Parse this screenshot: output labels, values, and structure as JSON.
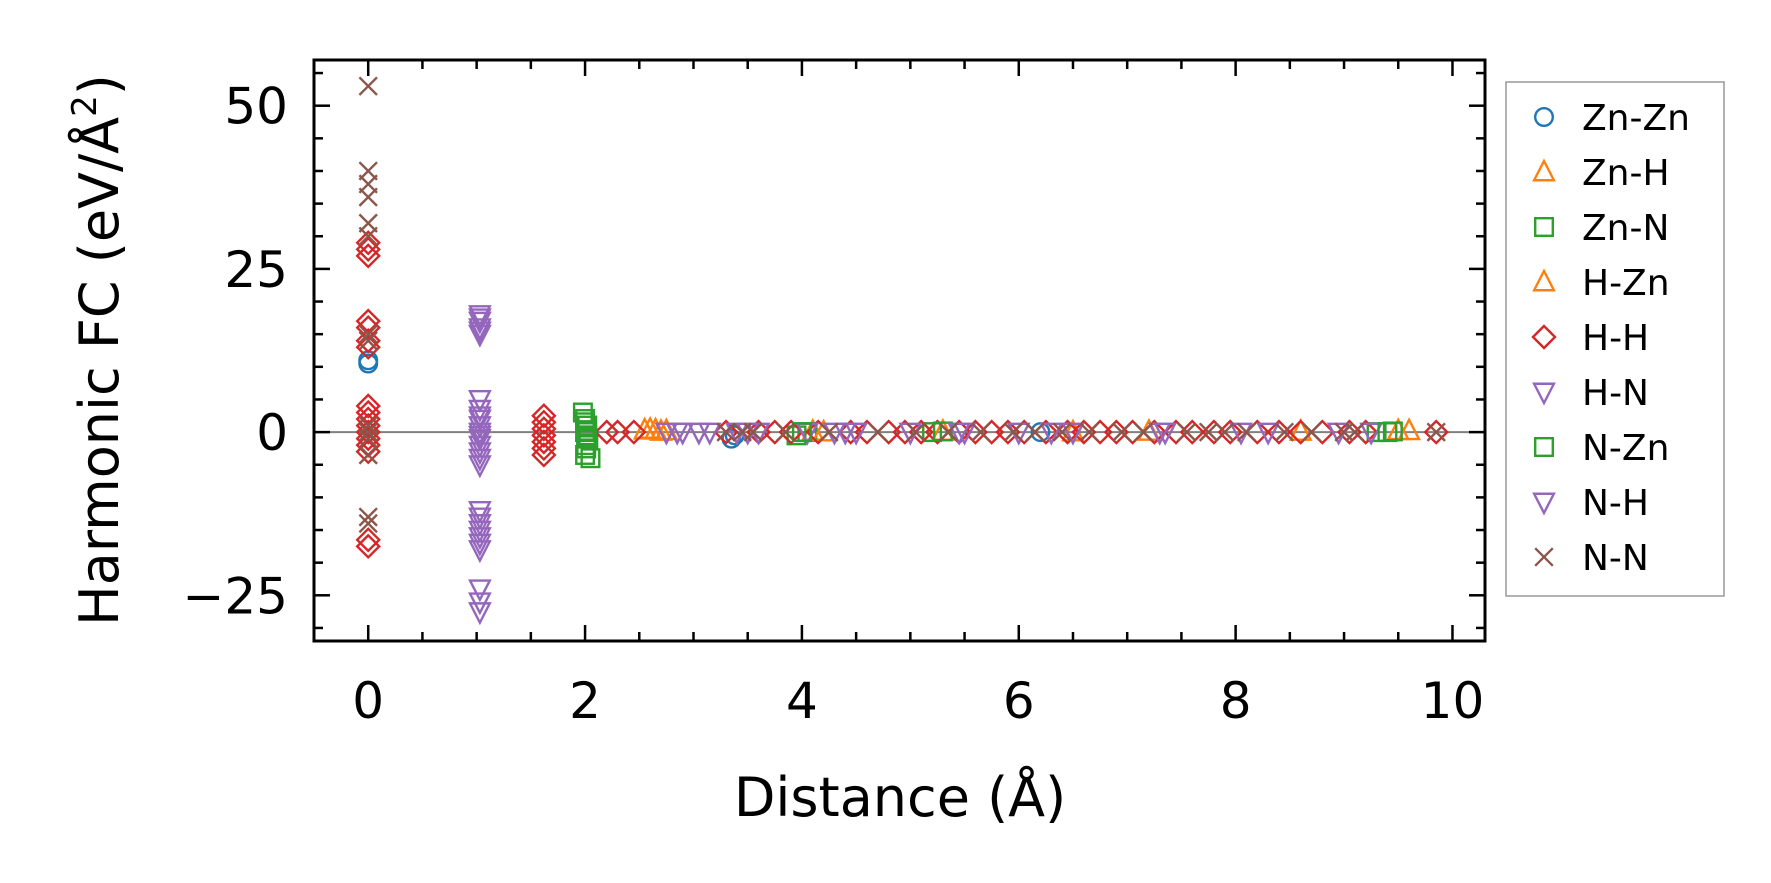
{
  "chart_data": {
    "type": "scatter",
    "title": "",
    "xlabel": "Distance (Å)",
    "ylabel": "Harmonic FC (eV/Å",
    "ylabel_sup": "2",
    "ylabel_close": ")",
    "xlim": [
      -0.5,
      10.3
    ],
    "ylim": [
      -32,
      57
    ],
    "xticks": [
      0,
      2,
      4,
      6,
      8,
      10
    ],
    "xtick_labels": [
      "0",
      "2",
      "4",
      "6",
      "8",
      "10"
    ],
    "yticks": [
      -25,
      0,
      25,
      50
    ],
    "ytick_labels": [
      "−25",
      "0",
      "25",
      "50"
    ],
    "x_minor_step": 0.5,
    "y_minor_step": 5,
    "zero_line": true,
    "legend_position": "outside-right",
    "series": [
      {
        "name": "Zn-Zn",
        "marker": "circle",
        "color": "#1f77b4",
        "points": [
          [
            0,
            10.5
          ],
          [
            0,
            11
          ],
          [
            3.35,
            -1
          ],
          [
            3.38,
            -0.5
          ],
          [
            6.2,
            0
          ]
        ]
      },
      {
        "name": "Zn-H",
        "marker": "triangle-up",
        "color": "#ff7f0e",
        "points": [
          [
            2.55,
            0.3
          ],
          [
            2.65,
            0.3
          ],
          [
            2.75,
            0.2
          ],
          [
            4.1,
            0.1
          ],
          [
            5.3,
            0.1
          ],
          [
            7.2,
            0.1
          ],
          [
            9.5,
            0.2
          ],
          [
            9.6,
            0.2
          ]
        ]
      },
      {
        "name": "Zn-N",
        "marker": "square",
        "color": "#2ca02c",
        "points": [
          [
            1.98,
            3
          ],
          [
            2.0,
            2
          ],
          [
            2.02,
            1
          ],
          [
            2.0,
            0
          ],
          [
            2.03,
            -1
          ],
          [
            2.01,
            -2
          ],
          [
            2.0,
            -3.5
          ],
          [
            2.05,
            -4
          ],
          [
            3.95,
            -0.5
          ],
          [
            4.05,
            0
          ],
          [
            5.2,
            0
          ],
          [
            9.3,
            0
          ],
          [
            9.45,
            0.1
          ]
        ]
      },
      {
        "name": "H-Zn",
        "marker": "triangle-up",
        "color": "#ff7f0e",
        "points": [
          [
            2.6,
            0.4
          ],
          [
            2.7,
            0.1
          ],
          [
            4.2,
            0
          ],
          [
            6.5,
            0
          ],
          [
            8.6,
            0.1
          ]
        ]
      },
      {
        "name": "H-H",
        "marker": "diamond",
        "color": "#d62728",
        "points": [
          [
            0,
            27
          ],
          [
            0,
            28
          ],
          [
            0,
            29
          ],
          [
            0,
            17
          ],
          [
            0,
            16
          ],
          [
            0,
            14
          ],
          [
            0,
            13
          ],
          [
            0,
            4
          ],
          [
            0,
            3
          ],
          [
            0,
            2
          ],
          [
            0,
            1
          ],
          [
            0,
            0
          ],
          [
            0,
            -1
          ],
          [
            0,
            -2
          ],
          [
            0,
            -3
          ],
          [
            0,
            -16.5
          ],
          [
            0,
            -17.5
          ],
          [
            1.62,
            2.5
          ],
          [
            1.62,
            1.5
          ],
          [
            1.62,
            0.5
          ],
          [
            1.62,
            -0.5
          ],
          [
            1.62,
            -1.5
          ],
          [
            1.62,
            -2.5
          ],
          [
            1.62,
            -3.5
          ],
          [
            2.2,
            0
          ],
          [
            2.3,
            0
          ],
          [
            2.45,
            0
          ],
          [
            3.3,
            0
          ],
          [
            3.6,
            0
          ],
          [
            3.75,
            0
          ],
          [
            3.9,
            0
          ],
          [
            4.15,
            0
          ],
          [
            4.45,
            0
          ],
          [
            4.6,
            0
          ],
          [
            4.8,
            0
          ],
          [
            4.95,
            0
          ],
          [
            5.1,
            0
          ],
          [
            5.25,
            0
          ],
          [
            5.45,
            0
          ],
          [
            5.6,
            0
          ],
          [
            5.75,
            0
          ],
          [
            5.9,
            0
          ],
          [
            6.05,
            0
          ],
          [
            6.25,
            0
          ],
          [
            6.45,
            0
          ],
          [
            6.6,
            0
          ],
          [
            6.75,
            0
          ],
          [
            6.9,
            0
          ],
          [
            7.05,
            0
          ],
          [
            7.25,
            0
          ],
          [
            7.45,
            0
          ],
          [
            7.6,
            0
          ],
          [
            7.8,
            0
          ],
          [
            7.95,
            0
          ],
          [
            8.2,
            0
          ],
          [
            8.4,
            0
          ],
          [
            8.6,
            0
          ],
          [
            8.8,
            0
          ],
          [
            9.05,
            0
          ],
          [
            9.2,
            0
          ],
          [
            9.85,
            0
          ]
        ]
      },
      {
        "name": "H-N",
        "marker": "triangle-down",
        "color": "#9467bd",
        "points": [
          [
            1.03,
            18
          ],
          [
            1.03,
            17
          ],
          [
            1.03,
            16
          ],
          [
            1.03,
            15
          ],
          [
            1.03,
            5
          ],
          [
            1.03,
            3.5
          ],
          [
            1.03,
            2
          ],
          [
            1.03,
            1
          ],
          [
            1.03,
            0
          ],
          [
            1.03,
            -1
          ],
          [
            1.03,
            -2
          ],
          [
            1.03,
            -3
          ],
          [
            1.03,
            -4
          ],
          [
            1.03,
            -5
          ],
          [
            1.03,
            -12
          ],
          [
            1.03,
            -14
          ],
          [
            1.03,
            -16
          ],
          [
            1.03,
            -18
          ],
          [
            2.75,
            0
          ],
          [
            2.9,
            0
          ],
          [
            3.05,
            0
          ],
          [
            3.4,
            0
          ],
          [
            3.6,
            0
          ],
          [
            4.05,
            0
          ],
          [
            4.3,
            0
          ],
          [
            4.5,
            0
          ],
          [
            5.0,
            0
          ],
          [
            5.5,
            0
          ],
          [
            6.0,
            0
          ],
          [
            6.5,
            0
          ],
          [
            7.3,
            0
          ],
          [
            8.05,
            0
          ],
          [
            8.95,
            0
          ],
          [
            9.25,
            0
          ]
        ]
      },
      {
        "name": "N-Zn",
        "marker": "square",
        "color": "#2ca02c",
        "points": [
          [
            2.0,
            1.5
          ],
          [
            2.02,
            -0.5
          ],
          [
            2.01,
            -2.5
          ],
          [
            4.0,
            0
          ],
          [
            5.3,
            0.1
          ],
          [
            9.4,
            0
          ]
        ]
      },
      {
        "name": "N-H",
        "marker": "triangle-down",
        "color": "#9467bd",
        "points": [
          [
            1.03,
            17.5
          ],
          [
            1.03,
            15.5
          ],
          [
            1.03,
            2.5
          ],
          [
            1.03,
            -0.5
          ],
          [
            1.03,
            -13
          ],
          [
            1.03,
            -15
          ],
          [
            1.03,
            -17
          ],
          [
            1.03,
            -24
          ],
          [
            1.03,
            -26
          ],
          [
            1.03,
            -27.5
          ],
          [
            2.85,
            0
          ],
          [
            3.15,
            0
          ],
          [
            3.5,
            0
          ],
          [
            4.4,
            0
          ],
          [
            5.45,
            0
          ],
          [
            6.3,
            0
          ],
          [
            7.35,
            0
          ],
          [
            8.3,
            0
          ]
        ]
      },
      {
        "name": "N-N",
        "marker": "x",
        "color": "#8c564b",
        "points": [
          [
            0,
            53
          ],
          [
            0,
            40
          ],
          [
            0,
            38
          ],
          [
            0,
            36
          ],
          [
            0,
            32
          ],
          [
            0,
            30
          ],
          [
            0,
            15
          ],
          [
            0,
            14
          ],
          [
            0,
            1
          ],
          [
            0,
            0
          ],
          [
            0,
            -1
          ],
          [
            0,
            -3.5
          ],
          [
            0,
            -13
          ],
          [
            0,
            -14
          ],
          [
            3.3,
            0
          ],
          [
            3.45,
            0
          ],
          [
            3.55,
            0
          ],
          [
            3.85,
            0
          ],
          [
            4.25,
            0
          ],
          [
            4.7,
            0
          ],
          [
            5.05,
            0
          ],
          [
            5.35,
            0
          ],
          [
            5.65,
            0
          ],
          [
            5.95,
            0
          ],
          [
            6.15,
            0
          ],
          [
            6.4,
            0
          ],
          [
            6.65,
            0
          ],
          [
            6.95,
            0
          ],
          [
            7.15,
            0
          ],
          [
            7.55,
            0
          ],
          [
            7.75,
            0
          ],
          [
            7.9,
            0
          ],
          [
            8.1,
            0
          ],
          [
            8.45,
            0
          ],
          [
            8.7,
            0
          ],
          [
            9.0,
            0
          ],
          [
            9.1,
            0
          ],
          [
            9.85,
            0
          ]
        ]
      }
    ]
  }
}
